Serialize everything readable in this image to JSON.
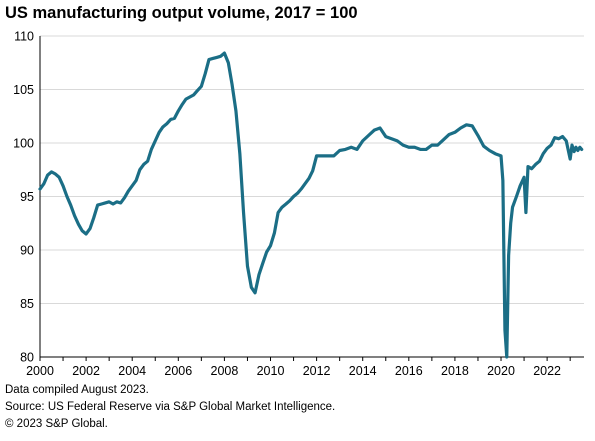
{
  "title": "US manufacturing output volume, 2017 = 100",
  "footnotes": {
    "compiled": "Data compiled August 2023.",
    "source": "Source: US Federal Reserve via S&P Global Market Intelligence.",
    "copyright": "© 2023 S&P Global."
  },
  "colors": {
    "line": "#1b6e86",
    "grid": "#d9d9d9",
    "axis": "#000000"
  },
  "chart_data": {
    "type": "line",
    "title": "US manufacturing output volume, 2017 = 100",
    "xlabel": "",
    "ylabel": "",
    "xlim": [
      2000,
      2023.6
    ],
    "ylim": [
      80,
      110
    ],
    "x_ticks": [
      2000,
      2002,
      2004,
      2006,
      2008,
      2010,
      2012,
      2014,
      2016,
      2018,
      2020,
      2022
    ],
    "y_ticks": [
      80,
      85,
      90,
      95,
      100,
      105,
      110
    ],
    "grid": "horizontal",
    "legend": "none",
    "series": [
      {
        "x": [
          2000.0,
          2000.17,
          2000.33,
          2000.5,
          2000.67,
          2000.83,
          2001.0,
          2001.17,
          2001.33,
          2001.5,
          2001.67,
          2001.83,
          2002.0,
          2002.17,
          2002.33,
          2002.5,
          2002.67,
          2002.83,
          2003.0,
          2003.17,
          2003.33,
          2003.5,
          2003.67,
          2003.83,
          2004.0,
          2004.17,
          2004.33,
          2004.5,
          2004.67,
          2004.83,
          2005.0,
          2005.17,
          2005.33,
          2005.5,
          2005.67,
          2005.83,
          2006.0,
          2006.17,
          2006.33,
          2006.5,
          2006.67,
          2006.83,
          2007.0,
          2007.17,
          2007.33,
          2007.5,
          2007.67,
          2007.83,
          2008.0,
          2008.17,
          2008.33,
          2008.5,
          2008.67,
          2008.83,
          2009.0,
          2009.17,
          2009.33,
          2009.5,
          2009.67,
          2009.83,
          2010.0,
          2010.17,
          2010.33,
          2010.5,
          2010.67,
          2010.83,
          2011.0,
          2011.17,
          2011.33,
          2011.5,
          2011.67,
          2011.83,
          2012.0,
          2012.25,
          2012.5,
          2012.75,
          2013.0,
          2013.25,
          2013.5,
          2013.75,
          2014.0,
          2014.25,
          2014.5,
          2014.75,
          2015.0,
          2015.25,
          2015.5,
          2015.75,
          2016.0,
          2016.25,
          2016.5,
          2016.75,
          2017.0,
          2017.25,
          2017.5,
          2017.75,
          2018.0,
          2018.25,
          2018.5,
          2018.75,
          2019.0,
          2019.25,
          2019.5,
          2019.75,
          2020.0,
          2020.08,
          2020.17,
          2020.25,
          2020.33,
          2020.42,
          2020.5,
          2020.67,
          2020.83,
          2021.0,
          2021.08,
          2021.17,
          2021.33,
          2021.5,
          2021.67,
          2021.83,
          2022.0,
          2022.17,
          2022.33,
          2022.5,
          2022.67,
          2022.83,
          2023.0,
          2023.08,
          2023.17,
          2023.25,
          2023.33,
          2023.42,
          2023.5
        ],
        "y": [
          95.7,
          96.2,
          97.0,
          97.3,
          97.1,
          96.8,
          96.0,
          95.0,
          94.2,
          93.2,
          92.4,
          91.8,
          91.5,
          92.0,
          93.0,
          94.2,
          94.3,
          94.4,
          94.5,
          94.3,
          94.5,
          94.4,
          94.9,
          95.5,
          96.0,
          96.5,
          97.5,
          98.0,
          98.3,
          99.4,
          100.2,
          101.0,
          101.5,
          101.8,
          102.2,
          102.3,
          103.0,
          103.6,
          104.1,
          104.3,
          104.5,
          104.9,
          105.3,
          106.5,
          107.8,
          107.9,
          108.0,
          108.1,
          108.4,
          107.5,
          105.5,
          103.0,
          99.0,
          93.5,
          88.5,
          86.5,
          86.0,
          87.7,
          88.8,
          89.8,
          90.4,
          91.6,
          93.5,
          94.0,
          94.3,
          94.6,
          95.0,
          95.3,
          95.7,
          96.2,
          96.7,
          97.4,
          98.8,
          98.8,
          98.8,
          98.8,
          99.3,
          99.4,
          99.6,
          99.4,
          100.2,
          100.7,
          101.2,
          101.4,
          100.6,
          100.4,
          100.2,
          99.8,
          99.6,
          99.6,
          99.4,
          99.4,
          99.8,
          99.8,
          100.3,
          100.8,
          101.0,
          101.4,
          101.7,
          101.6,
          100.7,
          99.7,
          99.3,
          99.0,
          98.8,
          96.5,
          82.5,
          80.0,
          89.5,
          92.5,
          94.0,
          95.0,
          96.0,
          96.8,
          93.5,
          97.8,
          97.6,
          98.0,
          98.3,
          99.0,
          99.5,
          99.8,
          100.5,
          100.4,
          100.6,
          100.2,
          98.5,
          99.8,
          99.2,
          99.6,
          99.3,
          99.6,
          99.4
        ]
      }
    ]
  }
}
